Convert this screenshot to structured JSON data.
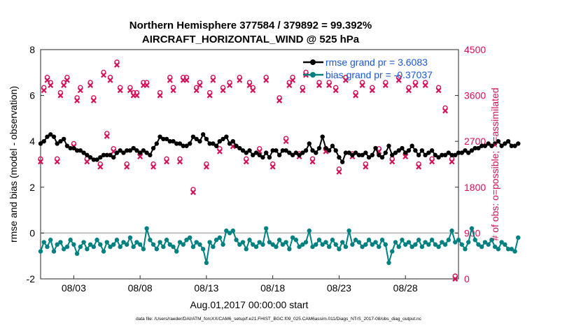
{
  "chart_data": {
    "type": "line",
    "title_line1": "Northern Hemisphere 377584 / 379892 = 99.392%",
    "title_line2": "AIRCRAFT_HORIZONTAL_WIND @ 525 hPa",
    "xlabel": "Aug.01,2017 00:00:00 start",
    "ylabel_left": "rmse and bias (model - observation)",
    "ylabel_right": "# of obs: o=possible; ×=assimilated",
    "footer": "data file: /Users/raeder/DAI/ATM_forcXX/CAM6_setup/f.e21.FHIST_BGC.f09_025.CAM6assim.011/Diags_NTrS_2017-08/obs_diag_output.nc",
    "x_range": [
      0.5,
      32
    ],
    "x_ticks": [
      3,
      8,
      13,
      18,
      23,
      28
    ],
    "x_tick_labels": [
      "08/03",
      "08/08",
      "08/13",
      "08/18",
      "08/23",
      "08/28"
    ],
    "ylim_left": [
      -2,
      8
    ],
    "yticks_left": [
      "-2",
      "0",
      "2",
      "4",
      "6",
      "8"
    ],
    "ylim_right": [
      0,
      4500
    ],
    "yticks_right": [
      "0",
      "900",
      "1800",
      "2700",
      "3600",
      "4500"
    ],
    "legend": [
      {
        "label": "rmse grand pr = 3.6083",
        "color": "#000000"
      },
      {
        "label": "bias grand pr = -0.37037",
        "color": "#008080"
      }
    ],
    "colors": {
      "rmse": "#000000",
      "bias": "#008080",
      "obs": "#d5105a",
      "zero_line": "#c0c0c0",
      "legend_text": "#1a57d8"
    },
    "x_start": 0.5,
    "x_step": 0.25,
    "rmse": [
      3.9,
      4.0,
      4.2,
      4.3,
      4.2,
      3.9,
      4.0,
      4.1,
      3.8,
      3.7,
      3.7,
      3.6,
      3.6,
      3.5,
      3.4,
      3.3,
      3.2,
      3.2,
      3.3,
      3.4,
      3.4,
      3.4,
      3.3,
      3.5,
      3.6,
      3.5,
      3.6,
      3.6,
      3.7,
      3.6,
      3.5,
      3.6,
      3.5,
      3.4,
      3.7,
      3.9,
      4.2,
      4.1,
      4.1,
      4.0,
      4.0,
      3.9,
      3.9,
      3.8,
      3.8,
      3.9,
      4.2,
      4.1,
      4.0,
      4.3,
      4.1,
      3.9,
      3.9,
      3.8,
      4.0,
      4.1,
      4.2,
      3.9,
      4.0,
      3.8,
      3.7,
      3.6,
      3.5,
      3.6,
      3.4,
      3.5,
      3.4,
      3.3,
      3.5,
      3.3,
      3.6,
      3.6,
      3.4,
      3.6,
      3.6,
      3.5,
      3.4,
      3.5,
      3.4,
      3.5,
      3.6,
      3.9,
      3.6,
      3.5,
      3.7,
      4.2,
      3.7,
      3.6,
      3.8,
      3.6,
      3.3,
      3.1,
      3.5,
      3.5,
      3.4,
      3.5,
      3.4,
      3.4,
      3.5,
      3.3,
      3.4,
      3.7,
      3.4,
      3.3,
      3.5,
      3.8,
      3.4,
      3.5,
      3.6,
      3.7,
      3.5,
      3.6,
      3.8,
      3.6,
      3.4,
      3.6,
      3.4,
      3.5,
      3.6,
      3.4,
      3.3,
      3.4,
      3.4,
      3.5,
      3.4,
      3.4,
      3.5,
      3.5,
      3.6,
      3.5,
      3.6,
      3.7,
      3.7,
      3.8,
      3.8,
      3.9,
      3.8,
      3.9,
      4.0,
      3.8,
      3.9,
      4.0,
      3.8,
      3.8,
      3.9
    ],
    "bias": [
      -0.8,
      -0.4,
      -0.6,
      -0.3,
      -0.8,
      -0.5,
      -0.4,
      -0.7,
      -0.6,
      -0.3,
      -0.5,
      -0.9,
      -0.6,
      -0.4,
      -0.7,
      -0.5,
      -0.6,
      -0.3,
      -0.5,
      -0.8,
      -0.4,
      -0.6,
      -0.5,
      -0.3,
      -0.6,
      -0.4,
      -0.5,
      -0.2,
      -0.6,
      -0.4,
      -0.5,
      -0.7,
      0.2,
      -0.3,
      -0.5,
      -0.7,
      -0.4,
      -0.6,
      -0.3,
      -0.5,
      -0.6,
      -0.8,
      -0.4,
      -0.5,
      -0.3,
      -0.2,
      -0.6,
      -0.4,
      -0.5,
      -0.7,
      -1.3,
      -0.4,
      -0.6,
      -0.3,
      -0.2,
      -0.5,
      0.1,
      0.0,
      0.1,
      -0.3,
      -0.5,
      -0.4,
      -0.7,
      -0.3,
      -0.5,
      -0.6,
      -0.4,
      -0.5,
      0.2,
      -0.4,
      -0.5,
      -0.6,
      -0.3,
      -0.5,
      -0.4,
      -0.7,
      -0.2,
      -0.3,
      -0.6,
      -0.5,
      -0.4,
      0.1,
      -0.6,
      -0.5,
      -0.3,
      -0.5,
      -0.4,
      -0.6,
      -0.3,
      -0.5,
      -0.7,
      -0.4,
      -0.6,
      0.1,
      -0.5,
      -0.3,
      -0.4,
      -0.6,
      -0.5,
      -0.3,
      -0.5,
      -0.4,
      -0.6,
      -0.3,
      -0.5,
      -1.3,
      -0.8,
      -0.4,
      -0.6,
      -0.3,
      -0.5,
      -0.4,
      -0.6,
      -0.5,
      -0.3,
      -0.6,
      -0.4,
      -0.5,
      -0.3,
      -0.5,
      -0.6,
      -0.4,
      -0.5,
      -0.3,
      0.1,
      -0.4,
      -0.3,
      -0.5,
      -0.7,
      -0.4,
      0.2,
      -0.3,
      -0.5,
      -0.6,
      -0.4,
      -0.5,
      -0.3,
      -0.6,
      -0.7,
      -0.4,
      -0.5,
      -0.7,
      -0.7,
      -0.8,
      -0.2
    ],
    "obs_points": [
      [
        0.5,
        2300
      ],
      [
        0.75,
        3700
      ],
      [
        1.0,
        3900
      ],
      [
        1.25,
        3800
      ],
      [
        1.75,
        2300
      ],
      [
        2.0,
        3600
      ],
      [
        2.25,
        3800
      ],
      [
        2.5,
        3900
      ],
      [
        3.0,
        2600
      ],
      [
        3.25,
        3500
      ],
      [
        3.5,
        3700
      ],
      [
        4.0,
        2300
      ],
      [
        4.25,
        3800
      ],
      [
        4.5,
        3500
      ],
      [
        5.0,
        2200
      ],
      [
        5.25,
        4000
      ],
      [
        5.5,
        2800
      ],
      [
        5.75,
        3900
      ],
      [
        6.0,
        2500
      ],
      [
        6.25,
        4200
      ],
      [
        6.5,
        3700
      ],
      [
        7.0,
        2200
      ],
      [
        7.25,
        3700
      ],
      [
        7.5,
        3600
      ],
      [
        7.75,
        3600
      ],
      [
        8.0,
        2400
      ],
      [
        8.25,
        3800
      ],
      [
        8.5,
        3800
      ],
      [
        9.0,
        2200
      ],
      [
        9.5,
        3600
      ],
      [
        10.0,
        2300
      ],
      [
        10.25,
        3900
      ],
      [
        10.5,
        3700
      ],
      [
        11.0,
        2300
      ],
      [
        11.25,
        3900
      ],
      [
        11.5,
        3900
      ],
      [
        12.0,
        1700
      ],
      [
        12.25,
        3700
      ],
      [
        12.5,
        3800
      ],
      [
        13.0,
        2200
      ],
      [
        13.25,
        3600
      ],
      [
        13.5,
        3900
      ],
      [
        14.0,
        2500
      ],
      [
        14.25,
        3700
      ],
      [
        14.75,
        3800
      ],
      [
        15.0,
        2600
      ],
      [
        15.5,
        3900
      ],
      [
        16.0,
        2300
      ],
      [
        16.25,
        3800
      ],
      [
        16.5,
        3700
      ],
      [
        17.0,
        2500
      ],
      [
        17.5,
        3900
      ],
      [
        18.0,
        2200
      ],
      [
        18.5,
        3500
      ],
      [
        19.0,
        2700
      ],
      [
        19.25,
        3800
      ],
      [
        19.5,
        3900
      ],
      [
        20.0,
        2400
      ],
      [
        20.25,
        3700
      ],
      [
        20.5,
        4000
      ],
      [
        21.0,
        2300
      ],
      [
        21.5,
        3800
      ],
      [
        22.0,
        2500
      ],
      [
        22.25,
        3800
      ],
      [
        22.75,
        3700
      ],
      [
        23.0,
        2100
      ],
      [
        23.5,
        3900
      ],
      [
        24.0,
        2400
      ],
      [
        24.25,
        3600
      ],
      [
        24.75,
        3800
      ],
      [
        25.0,
        2200
      ],
      [
        25.5,
        3700
      ],
      [
        26.0,
        2500
      ],
      [
        26.5,
        3800
      ],
      [
        27.0,
        2300
      ],
      [
        27.5,
        3900
      ],
      [
        28.0,
        2400
      ],
      [
        28.25,
        3700
      ],
      [
        28.75,
        3800
      ],
      [
        29.0,
        2200
      ],
      [
        29.5,
        3800
      ],
      [
        30.0,
        2300
      ],
      [
        30.5,
        3700
      ],
      [
        31.0,
        3300
      ],
      [
        31.5,
        2300
      ],
      [
        31.75,
        0
      ]
    ]
  }
}
